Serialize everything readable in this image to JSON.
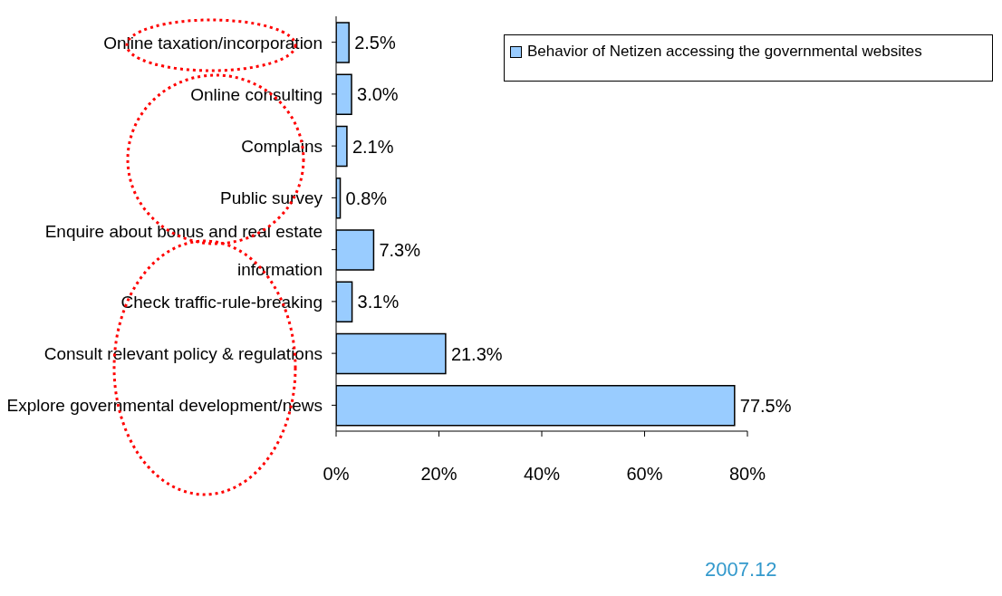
{
  "chart_data": {
    "type": "bar",
    "orientation": "horizontal",
    "categories": [
      "Online taxation/incorporation",
      "Online consulting",
      "Complains",
      "Public survey",
      "Enquire about bonus and real estate information",
      "Check traffic-rule-breaking",
      "Consult relevant policy & regulations",
      "Explore governmental development/news"
    ],
    "series": [
      {
        "name": "Behavior of Netizen accessing the governmental websites",
        "color": "#99ccff",
        "values": [
          2.5,
          3.0,
          2.1,
          0.8,
          7.3,
          3.1,
          21.3,
          77.5
        ],
        "value_labels": [
          "2.5%",
          "3.0%",
          "2.1%",
          "0.8%",
          "7.3%",
          "3.1%",
          "21.3%",
          "77.5%"
        ]
      }
    ],
    "xlim": [
      0,
      80
    ],
    "xticks": [
      {
        "value": 0,
        "label": "0%"
      },
      {
        "value": 20,
        "label": "20%"
      },
      {
        "value": 40,
        "label": "40%"
      },
      {
        "value": 60,
        "label": "60%"
      },
      {
        "value": 80,
        "label": "80%"
      }
    ],
    "grid": false,
    "legend": "top right",
    "annotations": [
      "2007.12"
    ]
  }
}
